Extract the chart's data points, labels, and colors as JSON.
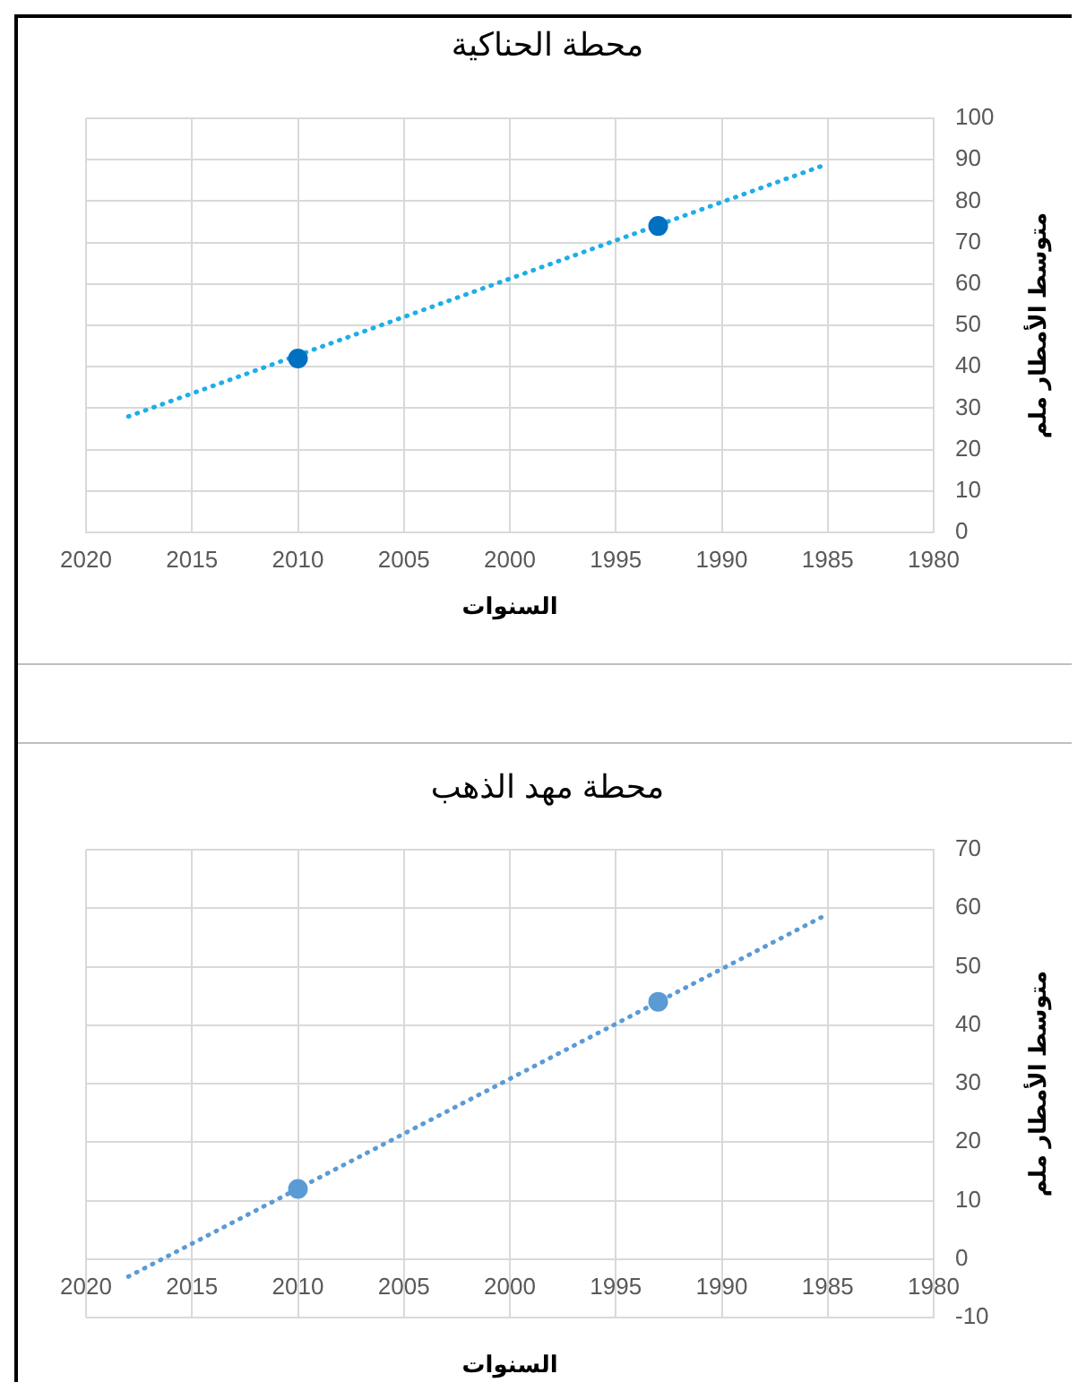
{
  "chart_data": [
    {
      "type": "scatter",
      "title": "محطة الحناكية",
      "xlabel": "السنوات",
      "ylabel": "متوسط الأمطار ملم",
      "xlim": [
        2020,
        1980
      ],
      "xticks": [
        2020,
        2015,
        2010,
        2005,
        2000,
        1995,
        1990,
        1985,
        1980
      ],
      "ylim": [
        0,
        100
      ],
      "yticks": [
        0,
        10,
        20,
        30,
        40,
        50,
        60,
        70,
        80,
        90,
        100
      ],
      "grid": true,
      "legend": false,
      "series": [
        {
          "type": "scatter",
          "color": "#0070c0",
          "marker": "circle",
          "x": [
            2010,
            1993
          ],
          "values": [
            42,
            74
          ]
        },
        {
          "type": "line",
          "color": "#1eaee8",
          "marker": "none",
          "line_style": "dotted",
          "x": [
            2018,
            1985
          ],
          "values": [
            28,
            89
          ]
        }
      ]
    },
    {
      "type": "scatter",
      "title": "محطة مهد الذهب",
      "xlabel": "السنوات",
      "ylabel": "متوسط الأمطار ملم",
      "xlim": [
        2020,
        1980
      ],
      "xticks": [
        2020,
        2015,
        2010,
        2005,
        2000,
        1995,
        1990,
        1985,
        1980
      ],
      "ylim": [
        -10,
        70
      ],
      "yticks": [
        -10,
        0,
        10,
        20,
        30,
        40,
        50,
        60,
        70
      ],
      "grid": true,
      "legend": false,
      "series": [
        {
          "type": "scatter",
          "color": "#5b9bd5",
          "marker": "circle",
          "x": [
            2010,
            1993
          ],
          "values": [
            12,
            44
          ]
        },
        {
          "type": "line",
          "color": "#5b9bd5",
          "marker": "none",
          "line_style": "dotted",
          "x": [
            2018,
            1985
          ],
          "values": [
            -3,
            59
          ]
        }
      ]
    }
  ]
}
